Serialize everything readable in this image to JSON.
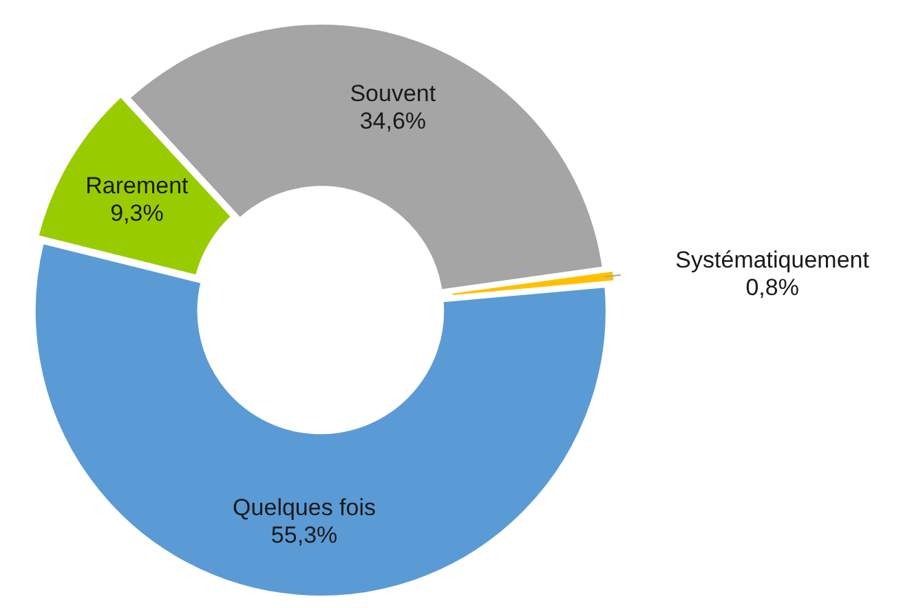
{
  "chart_data": {
    "type": "donut",
    "categories": [
      "Systématiquement",
      "Quelques fois",
      "Rarement",
      "Souvent"
    ],
    "values": [
      0.8,
      55.3,
      9.3,
      34.6
    ],
    "colors": [
      "#ffc000",
      "#5b9bd5",
      "#99cc00",
      "#a5a5a5"
    ],
    "value_labels": [
      "0,8%",
      "55,3%",
      "9,3%",
      "34,6%"
    ],
    "legend": false
  }
}
